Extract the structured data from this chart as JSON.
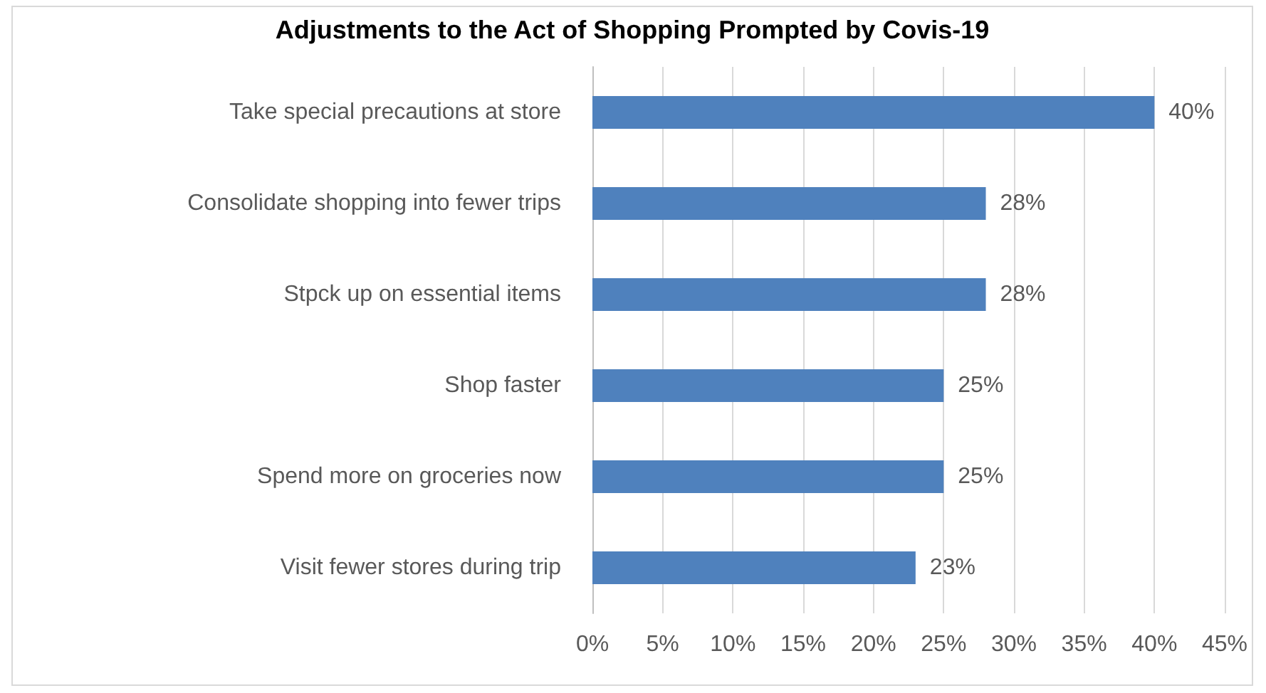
{
  "chart_data": {
    "type": "bar",
    "orientation": "horizontal",
    "title": "Adjustments to the Act of Shopping Prompted by Covis-19",
    "categories": [
      "Take special precautions at store",
      "Consolidate shopping into fewer trips",
      "Stpck up on essential items",
      "Shop faster",
      "Spend more on groceries now",
      "Visit fewer stores during trip"
    ],
    "values": [
      40,
      28,
      28,
      25,
      25,
      23
    ],
    "value_labels": [
      "40%",
      "28%",
      "28%",
      "25%",
      "25%",
      "23%"
    ],
    "color": "#4f81bd",
    "xlim": [
      0,
      45
    ],
    "xticks": [
      {
        "value": 0,
        "label": "0%"
      },
      {
        "value": 5,
        "label": "5%"
      },
      {
        "value": 10,
        "label": "10%"
      },
      {
        "value": 15,
        "label": "15%"
      },
      {
        "value": 20,
        "label": "20%"
      },
      {
        "value": 25,
        "label": "25%"
      },
      {
        "value": 30,
        "label": "30%"
      },
      {
        "value": 35,
        "label": "35%"
      },
      {
        "value": 40,
        "label": "40%"
      },
      {
        "value": 45,
        "label": "45%"
      }
    ],
    "grid": "x"
  }
}
